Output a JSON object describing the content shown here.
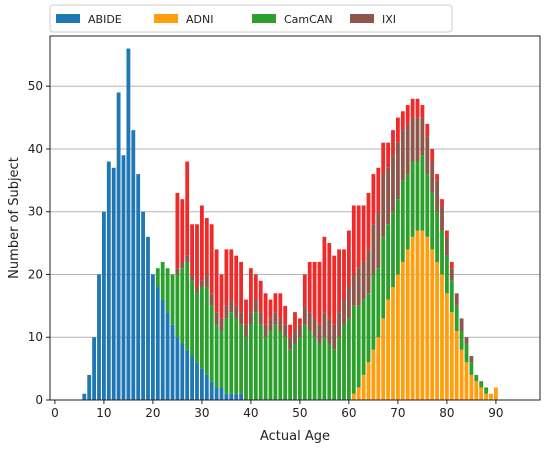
{
  "chart_data": {
    "type": "bar",
    "stacked": true,
    "xlabel": "Actual Age",
    "ylabel": "Number of Subject",
    "xlim": [
      -1,
      99
    ],
    "ylim": [
      0,
      58
    ],
    "xticks": [
      0,
      10,
      20,
      30,
      40,
      50,
      60,
      70,
      80,
      90
    ],
    "yticks": [
      0,
      10,
      20,
      30,
      40,
      50
    ],
    "grid": "horizontal",
    "legend_position": "top",
    "x": [
      6,
      7,
      8,
      9,
      10,
      11,
      12,
      13,
      14,
      15,
      16,
      17,
      18,
      19,
      20,
      21,
      22,
      23,
      24,
      25,
      26,
      27,
      28,
      29,
      30,
      31,
      32,
      33,
      34,
      35,
      36,
      37,
      38,
      39,
      40,
      41,
      42,
      43,
      44,
      45,
      46,
      47,
      48,
      49,
      50,
      51,
      52,
      53,
      54,
      55,
      56,
      57,
      58,
      59,
      60,
      61,
      62,
      63,
      64,
      65,
      66,
      67,
      68,
      69,
      70,
      71,
      72,
      73,
      74,
      75,
      76,
      77,
      78,
      79,
      80,
      81,
      82,
      83,
      84,
      85,
      86,
      87,
      88,
      89,
      90
    ],
    "series": [
      {
        "name": "ABIDE",
        "color": "#1f77b4",
        "values": [
          1,
          4,
          10,
          20,
          30,
          38,
          37,
          49,
          39,
          56,
          43,
          36,
          30,
          26,
          20,
          18,
          16,
          14,
          12,
          10,
          9,
          8,
          7,
          6,
          5,
          4,
          3,
          2,
          2,
          1,
          1,
          1,
          1,
          0,
          0,
          0,
          0,
          0,
          0,
          0,
          0,
          0,
          0,
          0,
          0,
          0,
          0,
          0,
          0,
          0,
          0,
          0,
          0,
          0,
          0,
          0,
          0,
          0,
          0,
          0,
          0,
          0,
          0,
          0,
          0,
          0,
          0,
          0,
          0,
          0,
          0,
          0,
          0,
          0,
          0,
          0,
          0,
          0,
          0,
          0,
          0,
          0,
          0,
          0,
          0
        ]
      },
      {
        "name": "ADNI",
        "color": "#ff9f0f",
        "values": [
          0,
          0,
          0,
          0,
          0,
          0,
          0,
          0,
          0,
          0,
          0,
          0,
          0,
          0,
          0,
          0,
          0,
          0,
          0,
          0,
          0,
          0,
          0,
          0,
          0,
          0,
          0,
          0,
          0,
          0,
          0,
          0,
          0,
          0,
          0,
          0,
          0,
          0,
          0,
          0,
          0,
          0,
          0,
          0,
          0,
          0,
          0,
          0,
          0,
          0,
          0,
          0,
          0,
          0,
          0,
          1,
          2,
          4,
          6,
          8,
          10,
          13,
          16,
          18,
          20,
          22,
          24,
          26,
          27,
          27,
          26,
          24,
          22,
          20,
          17,
          14,
          11,
          8,
          6,
          4,
          3,
          2,
          1,
          1,
          2
        ]
      },
      {
        "name": "CamCAN",
        "color": "#2ca02c",
        "values": [
          0,
          0,
          0,
          0,
          0,
          0,
          0,
          0,
          0,
          0,
          0,
          0,
          0,
          0,
          0,
          3,
          6,
          7,
          8,
          10,
          12,
          14,
          12,
          11,
          13,
          14,
          12,
          10,
          9,
          12,
          13,
          12,
          11,
          10,
          12,
          14,
          12,
          10,
          11,
          12,
          11,
          10,
          8,
          9,
          10,
          12,
          11,
          10,
          9,
          10,
          9,
          8,
          10,
          12,
          13,
          14,
          13,
          12,
          11,
          12,
          11,
          13,
          12,
          12,
          12,
          13,
          12,
          12,
          11,
          12,
          10,
          9,
          8,
          7,
          6,
          5,
          4,
          3,
          3,
          2,
          1,
          1,
          1,
          0,
          0
        ]
      },
      {
        "name": "IXI",
        "color": "#8c564b",
        "values": [
          0,
          0,
          0,
          0,
          0,
          0,
          0,
          0,
          0,
          0,
          0,
          0,
          0,
          0,
          0,
          0,
          0,
          0,
          0,
          1,
          1,
          1,
          1,
          1,
          1,
          2,
          2,
          2,
          2,
          2,
          2,
          2,
          2,
          2,
          2,
          2,
          2,
          2,
          2,
          2,
          2,
          2,
          2,
          2,
          2,
          3,
          3,
          3,
          3,
          4,
          4,
          4,
          4,
          4,
          5,
          5,
          6,
          6,
          7,
          8,
          9,
          10,
          9,
          9,
          9,
          8,
          8,
          7,
          7,
          6,
          6,
          5,
          5,
          4,
          3,
          2,
          2,
          2,
          1,
          1,
          0,
          0,
          0,
          0,
          0
        ]
      },
      {
        "name": "",
        "color": "#ee2a2a",
        "values": [
          0,
          0,
          0,
          0,
          0,
          0,
          0,
          0,
          0,
          0,
          0,
          0,
          0,
          0,
          0,
          0,
          0,
          0,
          0,
          12,
          10,
          15,
          8,
          10,
          12,
          9,
          11,
          10,
          7,
          9,
          8,
          8,
          8,
          4,
          7,
          4,
          5,
          5,
          3,
          3,
          4,
          3,
          2,
          3,
          1,
          5,
          8,
          9,
          10,
          12,
          12,
          11,
          10,
          8,
          9,
          11,
          10,
          9,
          9,
          8,
          7,
          5,
          4,
          4,
          4,
          3,
          3,
          3,
          3,
          2,
          2,
          2,
          1,
          1,
          1,
          1,
          0,
          0,
          0,
          0,
          0,
          0,
          0,
          0,
          0
        ]
      }
    ]
  }
}
